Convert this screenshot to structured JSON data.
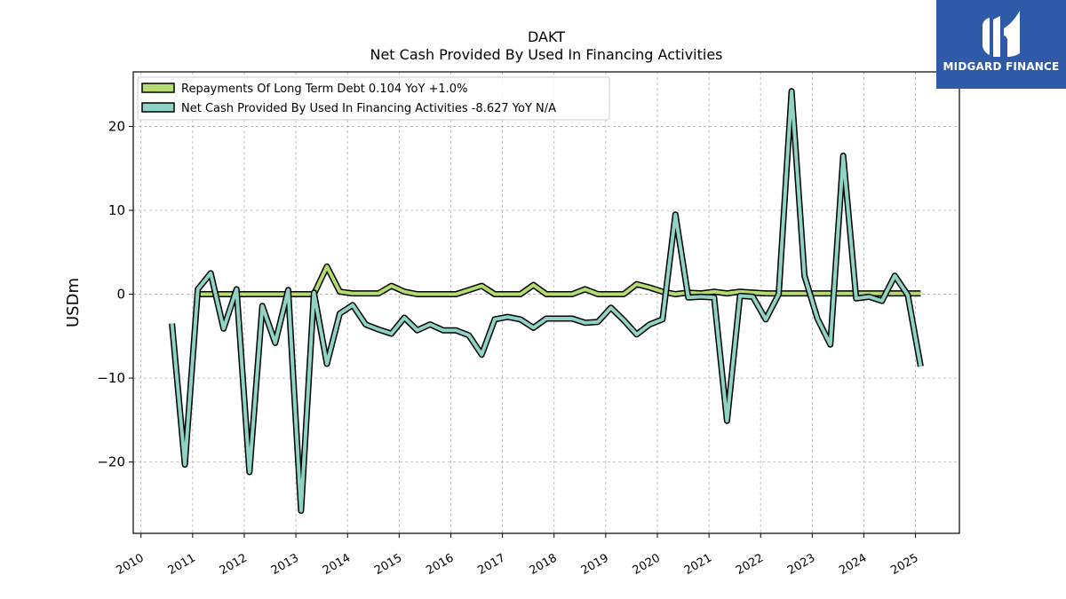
{
  "chart_data": {
    "type": "line",
    "title": "DAKT",
    "subtitle": "Net Cash Provided By Used In Financing Activities",
    "ylabel": "USDm",
    "xlabel": "",
    "ylim": [
      -28.5,
      26.5
    ],
    "xlim": [
      2009.85,
      2025.85
    ],
    "yticks": [
      20,
      10,
      0,
      -10,
      -20
    ],
    "ytick_labels": [
      "20",
      "10",
      "0",
      "−10",
      "−20"
    ],
    "xticks": [
      2010,
      2011,
      2012,
      2013,
      2014,
      2015,
      2016,
      2017,
      2018,
      2019,
      2020,
      2021,
      2022,
      2023,
      2024,
      2025
    ],
    "xtick_labels": [
      "2010",
      "2011",
      "2012",
      "2013",
      "2014",
      "2015",
      "2016",
      "2017",
      "2018",
      "2019",
      "2020",
      "2021",
      "2022",
      "2023",
      "2024",
      "2025"
    ],
    "grid": true,
    "legend_position": "top-left",
    "series": [
      {
        "name": "Repayments Of Long Term Debt",
        "legend_label": "Repayments Of Long Term Debt  0.104 YoY +1.0%",
        "color": "#b5dc6e",
        "x": [
          2011.1,
          2011.35,
          2011.6,
          2011.85,
          2012.1,
          2012.35,
          2012.6,
          2012.85,
          2013.1,
          2013.35,
          2013.6,
          2013.85,
          2014.1,
          2014.35,
          2014.6,
          2014.85,
          2015.1,
          2015.35,
          2015.6,
          2015.85,
          2016.1,
          2016.35,
          2016.6,
          2016.85,
          2017.1,
          2017.35,
          2017.6,
          2017.85,
          2018.1,
          2018.35,
          2018.6,
          2018.85,
          2019.1,
          2019.35,
          2019.6,
          2019.85,
          2020.1,
          2020.35,
          2020.6,
          2020.85,
          2021.1,
          2021.35,
          2021.6,
          2021.85,
          2022.1,
          2022.35,
          2022.6,
          2022.85,
          2023.1,
          2023.35,
          2023.6,
          2023.85,
          2024.1,
          2024.35,
          2024.6,
          2024.85,
          2025.1
        ],
        "values": [
          0,
          0,
          0,
          0,
          0,
          0,
          0,
          0,
          0,
          0,
          3.3,
          0.3,
          0.1,
          0.1,
          0.1,
          1.0,
          0.3,
          0.0,
          0.0,
          0.0,
          0.0,
          0.5,
          1.0,
          0.0,
          0.0,
          0.0,
          1.1,
          0.0,
          0.0,
          0.0,
          0.6,
          0.0,
          0.0,
          0.0,
          1.2,
          0.8,
          0.3,
          0.0,
          0.2,
          0.1,
          0.3,
          0.1,
          0.3,
          0.2,
          0.1,
          0.1,
          0.1,
          0.1,
          0.1,
          0.1,
          0.1,
          0.1,
          0.1,
          0.1,
          0.1,
          0.1,
          0.1
        ]
      },
      {
        "name": "Net Cash Provided By Used In Financing Activities",
        "legend_label": "Net Cash Provided By Used In Financing Activities  -8.627 YoY N/A",
        "color": "#8fd3c5",
        "x": [
          2010.6,
          2010.85,
          2011.1,
          2011.35,
          2011.6,
          2011.85,
          2012.1,
          2012.35,
          2012.6,
          2012.85,
          2013.1,
          2013.35,
          2013.6,
          2013.85,
          2014.1,
          2014.35,
          2014.6,
          2014.85,
          2015.1,
          2015.35,
          2015.6,
          2015.85,
          2016.1,
          2016.35,
          2016.6,
          2016.85,
          2017.1,
          2017.35,
          2017.6,
          2017.85,
          2018.1,
          2018.35,
          2018.6,
          2018.85,
          2019.1,
          2019.35,
          2019.6,
          2019.85,
          2020.1,
          2020.35,
          2020.6,
          2020.85,
          2021.1,
          2021.35,
          2021.6,
          2021.85,
          2022.1,
          2022.35,
          2022.6,
          2022.85,
          2023.1,
          2023.35,
          2023.6,
          2023.85,
          2024.1,
          2024.35,
          2024.6,
          2024.85,
          2025.1
        ],
        "values": [
          -3.5,
          -20.3,
          0.6,
          2.5,
          -4.1,
          0.6,
          -21.2,
          -1.4,
          -5.8,
          0.5,
          -25.8,
          0.2,
          -8.3,
          -2.3,
          -1.3,
          -3.6,
          -4.2,
          -4.7,
          -2.8,
          -4.3,
          -3.6,
          -4.3,
          -4.3,
          -4.9,
          -7.2,
          -3.0,
          -2.7,
          -3.0,
          -4.0,
          -2.9,
          -2.9,
          -2.9,
          -3.4,
          -3.3,
          -1.6,
          -3.1,
          -4.8,
          -3.6,
          -3.0,
          9.5,
          -0.4,
          -0.3,
          -0.4,
          -15.1,
          -0.2,
          -0.3,
          -3.0,
          0.0,
          24.2,
          2.2,
          -2.9,
          -6.0,
          16.5,
          -0.5,
          -0.3,
          -0.8,
          2.2,
          -0.1,
          -8.6
        ]
      }
    ]
  },
  "branding": {
    "logo_text": "MIDGARD FINANCE",
    "logo_color": "#2f5aa8"
  }
}
